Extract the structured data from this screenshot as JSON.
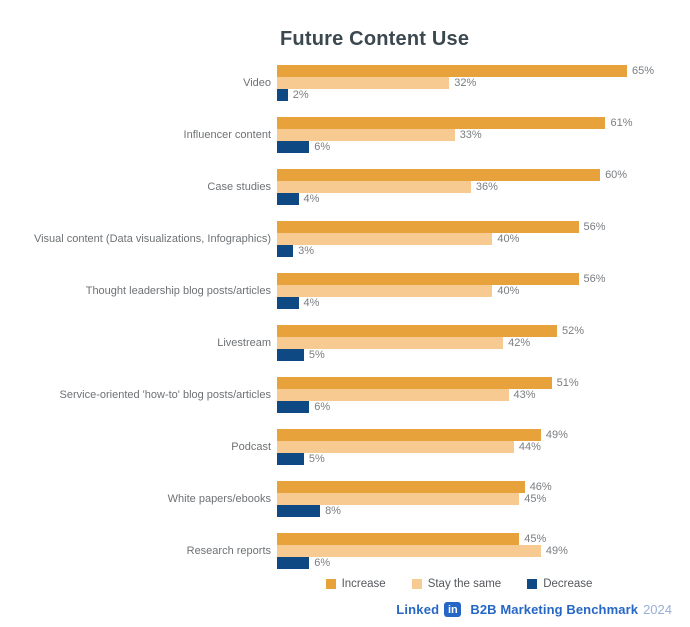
{
  "chart_data": {
    "type": "bar",
    "orientation": "horizontal",
    "title": "Future Content Use",
    "categories": [
      "Video",
      "Influencer content",
      "Case studies",
      "Visual content (Data visualizations, Infographics)",
      "Thought leadership blog posts/articles",
      "Livestream",
      "Service-oriented 'how-to' blog posts/articles",
      "Podcast",
      "White papers/ebooks",
      "Research reports"
    ],
    "series": [
      {
        "name": "Increase",
        "color": "#E8A23C",
        "values": [
          65,
          61,
          60,
          56,
          56,
          52,
          51,
          49,
          46,
          45
        ]
      },
      {
        "name": "Stay the same",
        "color": "#F6CA90",
        "values": [
          32,
          33,
          36,
          40,
          40,
          42,
          43,
          44,
          45,
          49
        ]
      },
      {
        "name": "Decrease",
        "color": "#0E4983",
        "values": [
          2,
          6,
          4,
          3,
          4,
          5,
          6,
          5,
          8,
          6
        ]
      }
    ],
    "value_suffix": "%",
    "xlim": [
      0,
      65
    ],
    "grid": false,
    "legend_position": "bottom"
  },
  "footer": {
    "brand_linked": "Linked",
    "brand_in": "in",
    "text": "B2B Marketing Benchmark",
    "year": "2024",
    "brand_color": "#2667C5",
    "year_color": "#9AAFD6"
  }
}
